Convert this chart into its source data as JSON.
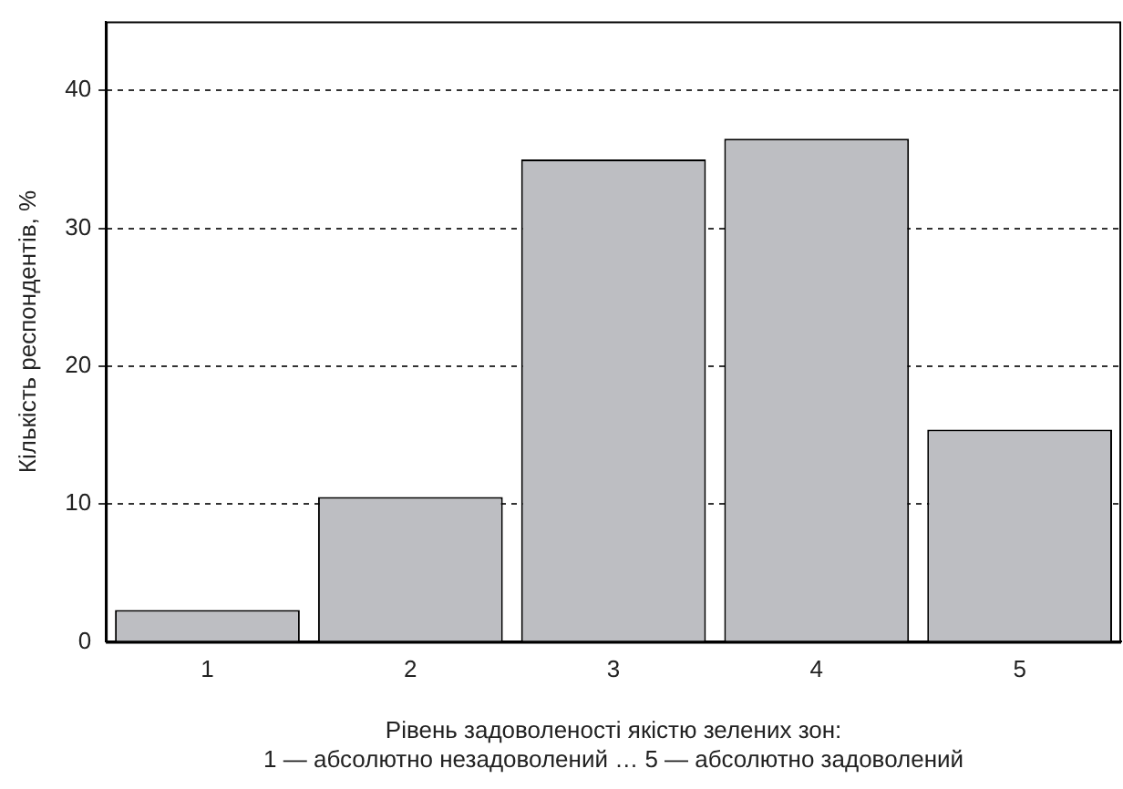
{
  "chart_data": {
    "type": "bar",
    "xlabel": "Рівень задоволеності якістю зелених зон:\n1 — абсолютно незадоволений … 5 — абсолютно задоволений",
    "ylabel": "Кількість респондентів, %",
    "categories": [
      "1",
      "2",
      "3",
      "4",
      "5"
    ],
    "values": [
      2.3,
      10.5,
      35.0,
      36.5,
      15.4
    ],
    "color": "#bdbec2",
    "ylim": [
      0,
      45
    ],
    "yticks": [
      0,
      10,
      20,
      30,
      40
    ],
    "grid": "y",
    "legend": false
  }
}
